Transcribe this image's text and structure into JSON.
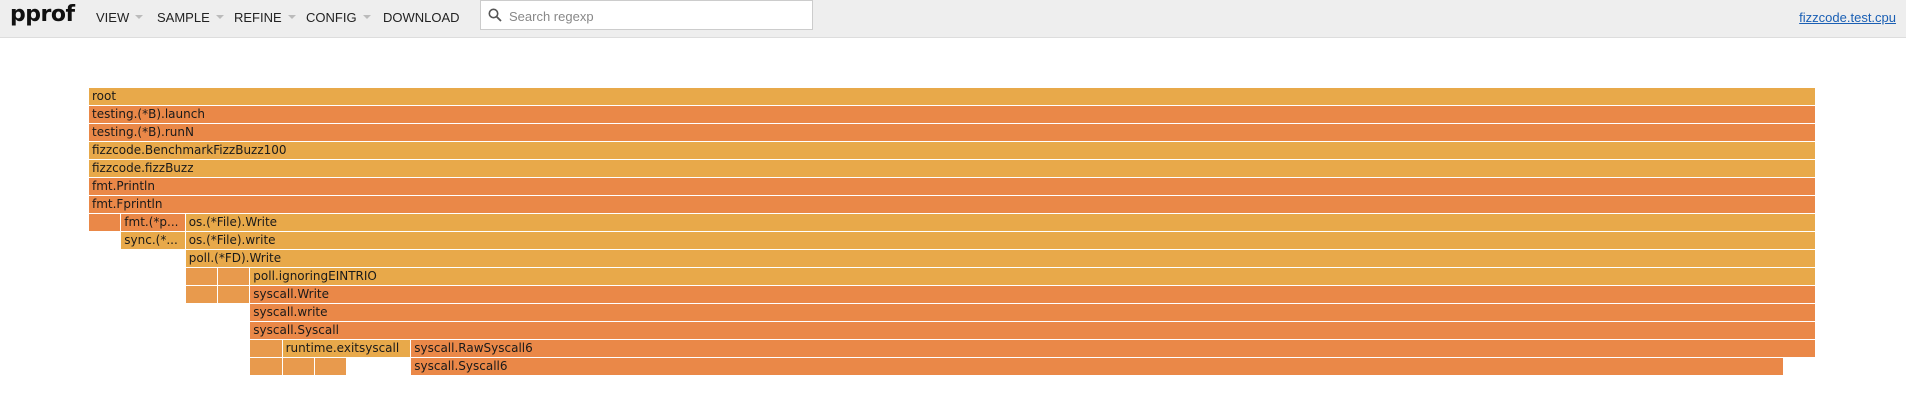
{
  "header": {
    "logo": "pprof",
    "menus": [
      {
        "label": "VIEW",
        "has_caret": true
      },
      {
        "label": "SAMPLE",
        "has_caret": true
      },
      {
        "label": "REFINE",
        "has_caret": true
      },
      {
        "label": "CONFIG",
        "has_caret": true
      },
      {
        "label": "DOWNLOAD",
        "has_caret": false
      }
    ],
    "search": {
      "placeholder": "Search regexp",
      "value": ""
    },
    "profile_link": "fizzcode.test.cpu"
  },
  "colors": {
    "header_bg": "#eeeeee",
    "link": "#1a5fb4",
    "frame_light": "#e8a94a",
    "frame_medium": "#e89a4d",
    "frame_dark": "#ea8848"
  },
  "flame": {
    "frames": [
      {
        "label": "root",
        "depth": 0,
        "start": 0,
        "width": 1.0,
        "color": "light"
      },
      {
        "label": "testing.(*B).launch",
        "depth": 1,
        "start": 0,
        "width": 1.0,
        "color": "dark"
      },
      {
        "label": "testing.(*B).runN",
        "depth": 2,
        "start": 0,
        "width": 1.0,
        "color": "dark"
      },
      {
        "label": "fizzcode.BenchmarkFizzBuzz100",
        "depth": 3,
        "start": 0,
        "width": 1.0,
        "color": "light"
      },
      {
        "label": "fizzcode.fizzBuzz",
        "depth": 4,
        "start": 0,
        "width": 1.0,
        "color": "light"
      },
      {
        "label": "fmt.Println",
        "depth": 5,
        "start": 0,
        "width": 1.0,
        "color": "dark"
      },
      {
        "label": "fmt.Fprintln",
        "depth": 6,
        "start": 0,
        "width": 1.0,
        "color": "dark"
      },
      {
        "label": "",
        "depth": 7,
        "start": 0,
        "width": 0.0187,
        "color": "dark"
      },
      {
        "label": "fmt.(*p...",
        "depth": 7,
        "start": 0.0187,
        "width": 0.0373,
        "color": "dark"
      },
      {
        "label": "os.(*File).Write",
        "depth": 7,
        "start": 0.056,
        "width": 0.944,
        "color": "light"
      },
      {
        "label": "sync.(*...",
        "depth": 8,
        "start": 0.0187,
        "width": 0.0373,
        "color": "light"
      },
      {
        "label": "os.(*File).write",
        "depth": 8,
        "start": 0.056,
        "width": 0.944,
        "color": "light"
      },
      {
        "label": "poll.(*FD).Write",
        "depth": 9,
        "start": 0.056,
        "width": 0.944,
        "color": "light"
      },
      {
        "label": "",
        "depth": 10,
        "start": 0.056,
        "width": 0.0187,
        "color": "medium"
      },
      {
        "label": "",
        "depth": 10,
        "start": 0.0747,
        "width": 0.0187,
        "color": "medium"
      },
      {
        "label": "poll.ignoringEINTRIO",
        "depth": 10,
        "start": 0.0934,
        "width": 0.9066,
        "color": "light"
      },
      {
        "label": "",
        "depth": 11,
        "start": 0.056,
        "width": 0.0187,
        "color": "medium"
      },
      {
        "label": "",
        "depth": 11,
        "start": 0.0747,
        "width": 0.0187,
        "color": "medium"
      },
      {
        "label": "syscall.Write",
        "depth": 11,
        "start": 0.0934,
        "width": 0.9066,
        "color": "dark"
      },
      {
        "label": "syscall.write",
        "depth": 12,
        "start": 0.0934,
        "width": 0.9066,
        "color": "dark"
      },
      {
        "label": "syscall.Syscall",
        "depth": 13,
        "start": 0.0934,
        "width": 0.9066,
        "color": "dark"
      },
      {
        "label": "",
        "depth": 14,
        "start": 0.0934,
        "width": 0.0187,
        "color": "medium"
      },
      {
        "label": "runtime.exitsyscall",
        "depth": 14,
        "start": 0.1121,
        "width": 0.0745,
        "color": "light"
      },
      {
        "label": "syscall.RawSyscall6",
        "depth": 14,
        "start": 0.1866,
        "width": 0.8134,
        "color": "dark"
      },
      {
        "label": "",
        "depth": 15,
        "start": 0.0934,
        "width": 0.0187,
        "color": "medium"
      },
      {
        "label": "",
        "depth": 15,
        "start": 0.1121,
        "width": 0.0187,
        "color": "medium"
      },
      {
        "label": "",
        "depth": 15,
        "start": 0.1308,
        "width": 0.0187,
        "color": "medium"
      },
      {
        "label": "syscall.Syscall6",
        "depth": 15,
        "start": 0.1866,
        "width": 0.795,
        "color": "dark"
      }
    ]
  }
}
